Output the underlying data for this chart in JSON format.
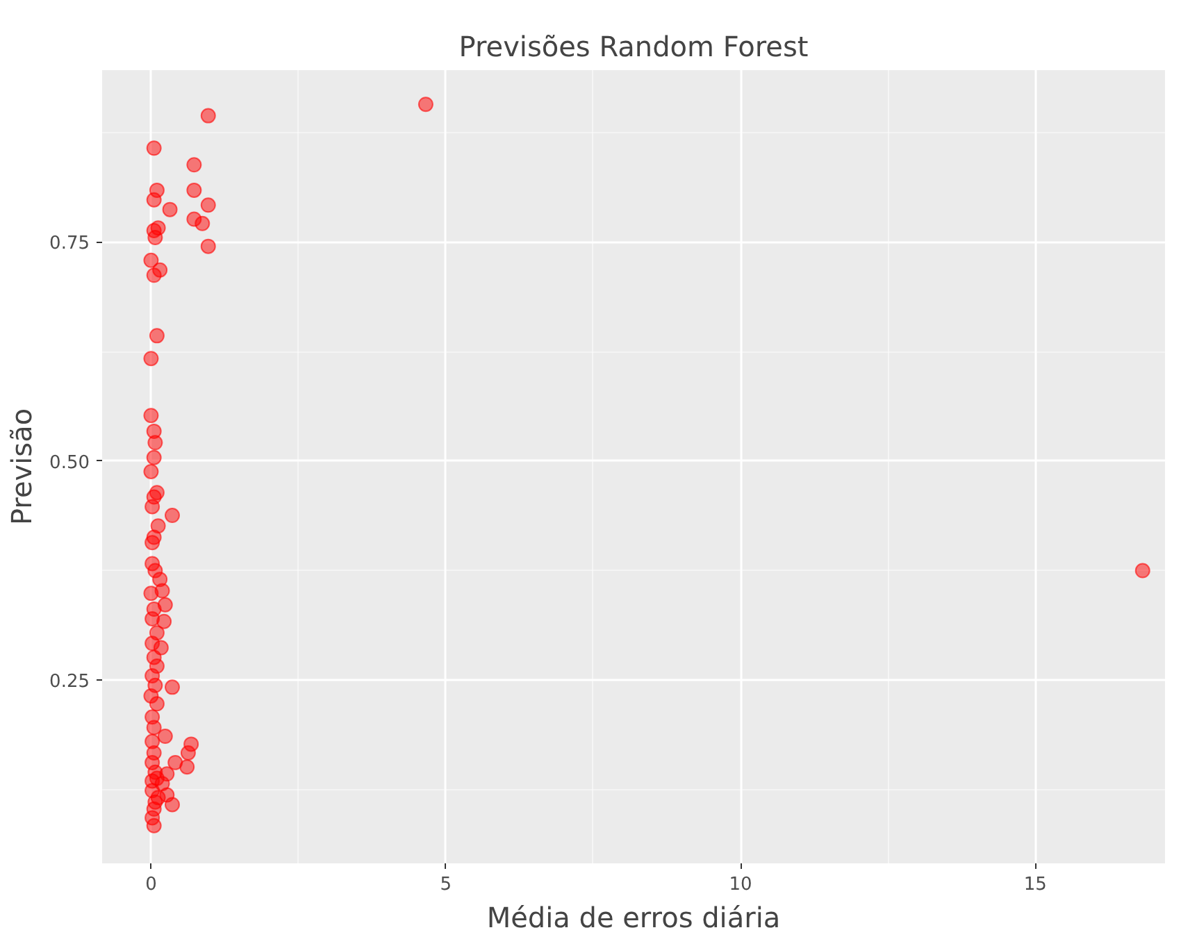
{
  "chart_data": {
    "type": "scatter",
    "title": "Previsões Random Forest",
    "xlabel": "Média de erros diária",
    "ylabel": "Previsão",
    "xlim": [
      -0.83,
      17.2
    ],
    "ylim": [
      0.041,
      0.946
    ],
    "xticks": [
      0,
      5,
      10,
      15
    ],
    "yticks": [
      0.25,
      {
        "value": 0.5,
        "label": "0.50"
      },
      0.75
    ],
    "grid": true,
    "marker": "circle",
    "series": [
      {
        "color": "#ff0000",
        "x": [
          0.97,
          4.66,
          0.05,
          0.73,
          0.1,
          0.73,
          0.05,
          0.32,
          0.97,
          0.73,
          0.87,
          0.05,
          0.12,
          0.07,
          0,
          0.97,
          0.15,
          0.05,
          0.1,
          0,
          0,
          0.05,
          0.07,
          0.05,
          0,
          0.05,
          0.1,
          0.02,
          0.36,
          0.12,
          0.05,
          0.02,
          0.02,
          0.07,
          0.15,
          0.19,
          0,
          0.24,
          0.05,
          0.02,
          0.22,
          0.1,
          0.02,
          0.17,
          0.05,
          0.1,
          0.02,
          0.07,
          0.36,
          0,
          0.1,
          0.02,
          0.05,
          0.24,
          0.02,
          0.05,
          0.68,
          0.63,
          0.41,
          0.61,
          0.27,
          0.1,
          0.19,
          0.02,
          0.12,
          0.27,
          0.36,
          0.05,
          0.02,
          0.05,
          0.02,
          0.07,
          0.02,
          0.07,
          16.82
        ],
        "values": [
          0.894,
          0.907,
          0.857,
          0.838,
          0.809,
          0.809,
          0.798,
          0.787,
          0.792,
          0.776,
          0.771,
          0.763,
          0.766,
          0.755,
          0.729,
          0.745,
          0.718,
          0.712,
          0.643,
          0.617,
          0.552,
          0.534,
          0.521,
          0.504,
          0.488,
          0.459,
          0.464,
          0.448,
          0.438,
          0.426,
          0.413,
          0.407,
          0.383,
          0.375,
          0.365,
          0.352,
          0.349,
          0.336,
          0.331,
          0.32,
          0.317,
          0.304,
          0.292,
          0.287,
          0.276,
          0.266,
          0.255,
          0.244,
          0.242,
          0.232,
          0.223,
          0.208,
          0.196,
          0.186,
          0.18,
          0.167,
          0.177,
          0.167,
          0.156,
          0.151,
          0.143,
          0.138,
          0.132,
          0.124,
          0.116,
          0.119,
          0.108,
          0.103,
          0.093,
          0.084,
          0.156,
          0.145,
          0.135,
          0.111,
          0.375
        ]
      }
    ]
  }
}
